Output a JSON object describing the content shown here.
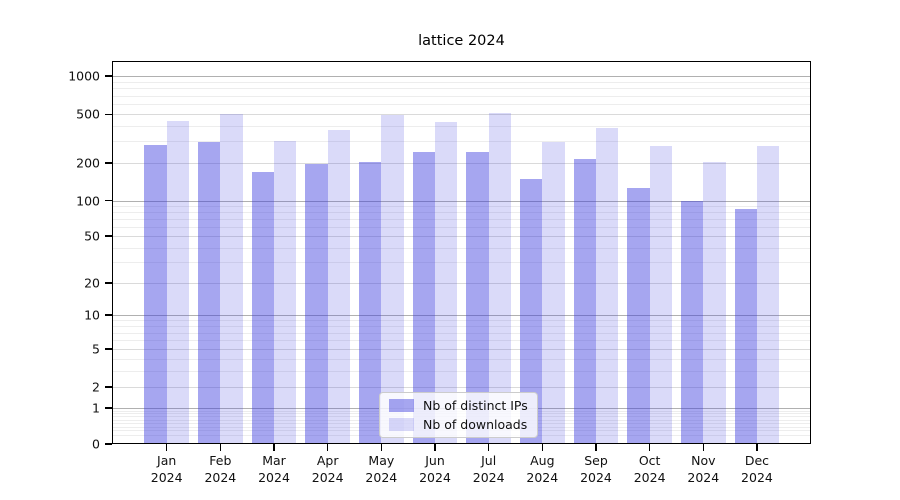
{
  "chart_data": {
    "type": "bar",
    "title": "lattice 2024",
    "categories": [
      "Jan",
      "Feb",
      "Mar",
      "Apr",
      "May",
      "Jun",
      "Jul",
      "Aug",
      "Sep",
      "Oct",
      "Nov",
      "Dec"
    ],
    "year": "2024",
    "series": [
      {
        "name": "Nb of distinct IPs",
        "color": "rgba(57,57,222,0.45)",
        "color_hex_on_white": "#a6a6f0",
        "values": [
          280,
          295,
          170,
          195,
          205,
          245,
          245,
          150,
          215,
          125,
          100,
          85
        ]
      },
      {
        "name": "Nb of downloads",
        "color": "rgba(57,57,222,0.19)",
        "color_hex_on_white": "#d9d9f9",
        "values": [
          440,
          500,
          300,
          370,
          490,
          430,
          515,
          295,
          385,
          275,
          205,
          275
        ]
      }
    ],
    "y_axis": {
      "scale": "log1p",
      "ticks": [
        0,
        1,
        2,
        5,
        10,
        20,
        50,
        100,
        200,
        500,
        1000
      ],
      "ylim": [
        0,
        1334
      ]
    },
    "x_axis": {
      "tick_label_lines": 2
    },
    "grid": true,
    "legend_position": "lower center (inside plot)"
  }
}
